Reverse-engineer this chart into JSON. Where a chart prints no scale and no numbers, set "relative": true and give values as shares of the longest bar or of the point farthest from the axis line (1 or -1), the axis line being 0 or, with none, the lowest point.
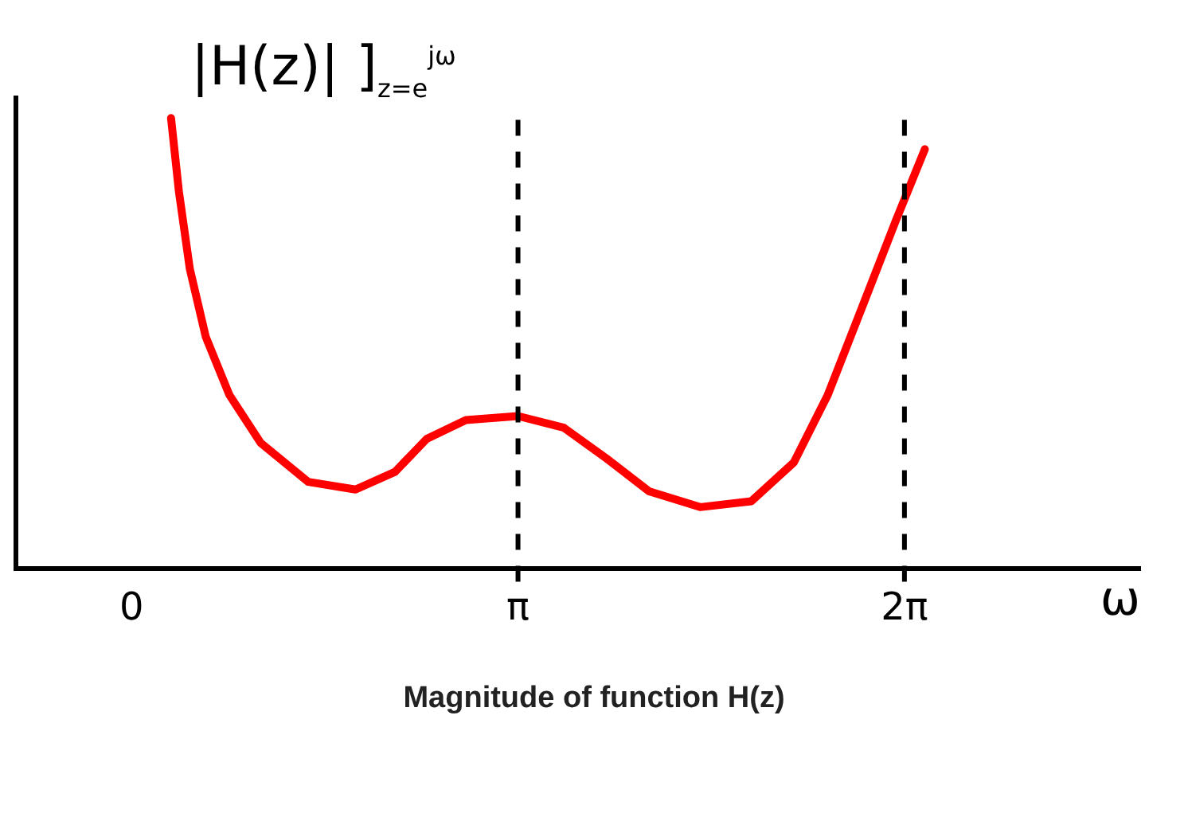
{
  "chart_data": {
    "type": "line",
    "relative": true,
    "ylabel": "|H(z)| ]$_{z=e}$$^{jω}$",
    "xlabel": "ω",
    "x": [
      0.321,
      0.385,
      0.474,
      0.603,
      0.795,
      1.051,
      1.436,
      1.821,
      2.141,
      2.398,
      2.718,
      3.142,
      3.515,
      3.861,
      4.207,
      4.622,
      5.038,
      5.384,
      5.66,
      5.937,
      6.214,
      6.449
    ],
    "series": [
      {
        "color": "#ff0000",
        "values": [
          1.0,
          0.837,
          0.665,
          0.515,
          0.386,
          0.279,
          0.193,
          0.176,
          0.215,
          0.288,
          0.33,
          0.339,
          0.313,
          0.245,
          0.172,
          0.137,
          0.15,
          0.236,
          0.386,
          0.579,
          0.773,
          0.931
        ]
      }
    ],
    "xlim": [
      -0.94,
      8.2
    ],
    "xticks": [
      {
        "value": 0,
        "label": "0"
      },
      {
        "value": 3.1416,
        "label": "π"
      },
      {
        "value": 6.2832,
        "label": "2π"
      }
    ],
    "ref_lines": [
      {
        "axis": "x",
        "value": 3.1416,
        "color": "#000000",
        "line_style": "dashed"
      },
      {
        "axis": "x",
        "value": 6.2832,
        "color": "#000000",
        "line_style": "dashed"
      }
    ],
    "grid": false,
    "legend": false,
    "marker": "none",
    "line_style": "solid",
    "annotations": [
      "Magnitude of function H(z)"
    ]
  }
}
